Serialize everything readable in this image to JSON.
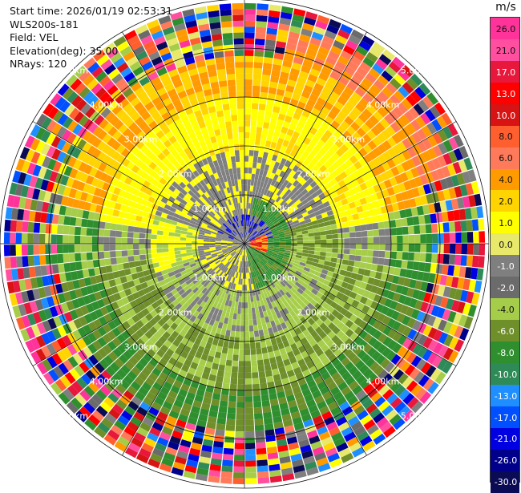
{
  "header": {
    "start_time": "Start time: 2026/01/19 02:53:31",
    "instrument": "WLS200s-181",
    "field": "Field: VEL",
    "elevation": "Elevation(deg): 35.00",
    "nrays": "NRays: 120"
  },
  "colorbar": {
    "unit": "m/s",
    "tick_labels": [
      "26.0",
      "21.0",
      "17.0",
      "13.0",
      "10.0",
      "8.0",
      "6.0",
      "4.0",
      "2.0",
      "1.0",
      "0.0",
      "-1.0",
      "-2.0",
      "-4.0",
      "-6.0",
      "-8.0",
      "-10.0",
      "-13.0",
      "-17.0",
      "-21.0",
      "-26.0",
      "-30.0"
    ],
    "bin_colors": [
      "#ff3399",
      "#ff4f9e",
      "#e8173c",
      "#ff0000",
      "#d81313",
      "#ff5f2f",
      "#ff7a5a",
      "#ff9a00",
      "#ffd400",
      "#ffff00",
      "#e8e86a",
      "#7f7f7f",
      "#6b6b6b",
      "#a6cd4a",
      "#6f8f2a",
      "#2f8f2f",
      "#2e8b57",
      "#1f8fff",
      "#0050ff",
      "#0000e0",
      "#00008b",
      "#0a0a55"
    ]
  },
  "ppi": {
    "range_ring_labels_km": [
      1.0,
      2.0,
      3.0,
      4.0,
      5.0
    ],
    "range_ring_text": [
      "1.00km",
      "2.00km",
      "3.00km",
      "4.00km",
      "5.00km"
    ],
    "rays": 120
  }
}
